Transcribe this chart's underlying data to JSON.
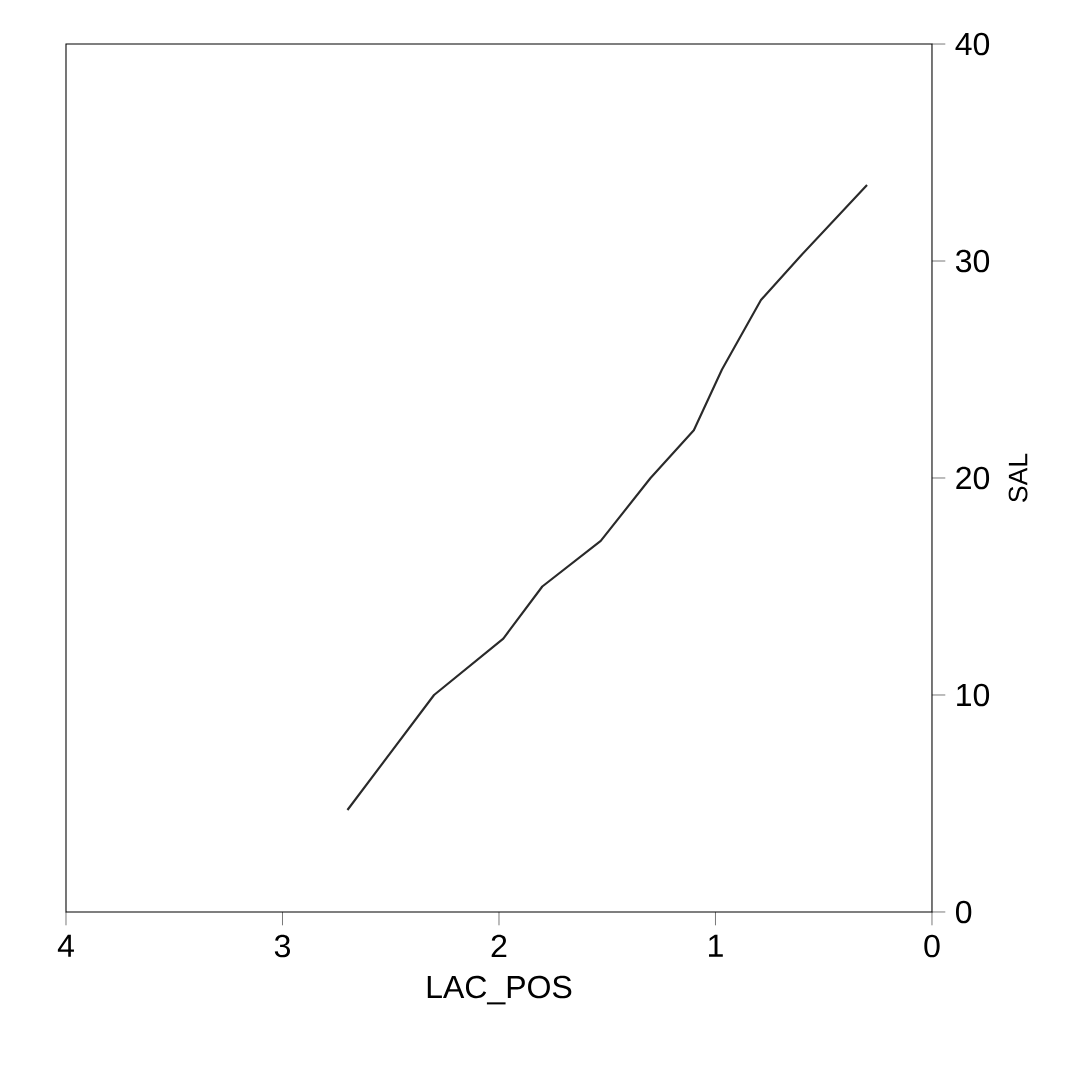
{
  "chart_data": {
    "type": "line",
    "xlabel": "LAC_POS",
    "ylabel": "SAL",
    "x": [
      2.7,
      2.3,
      1.98,
      1.8,
      1.53,
      1.3,
      1.1,
      0.97,
      0.79,
      0.61,
      0.3
    ],
    "values": [
      4.7,
      10,
      12.6,
      15,
      17.1,
      20,
      22.2,
      25,
      28.2,
      30.2,
      33.5
    ],
    "color": "#2a2a2a",
    "xlim": [
      4,
      0
    ],
    "ylim": [
      0,
      40
    ],
    "xticks": [
      0,
      1,
      2,
      3,
      4
    ],
    "yticks": [
      0,
      10,
      20,
      30,
      40
    ],
    "grid": false,
    "marker": "none",
    "line_style": "solid"
  }
}
